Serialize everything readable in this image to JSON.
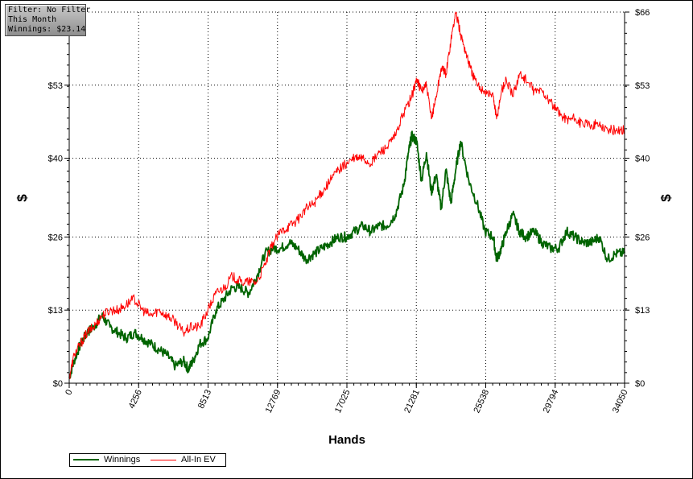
{
  "info_box": {
    "lines": [
      "Filter: No Filter",
      "This Month",
      "Winnings: $23.14"
    ]
  },
  "chart_data": {
    "type": "line",
    "xlabel": "Hands",
    "ylabel": "$",
    "xlim": [
      0,
      34050
    ],
    "ylim": [
      0,
      66
    ],
    "x_ticks": [
      0,
      4256,
      8513,
      12769,
      17025,
      21281,
      25538,
      29794,
      34050
    ],
    "y_ticks": [
      0,
      13,
      26,
      40,
      53,
      66
    ],
    "y_tick_labels": [
      "$0",
      "$13",
      "$26",
      "$40",
      "$53",
      "$66"
    ],
    "grid": true,
    "legend_position": "bottom-left",
    "series": [
      {
        "name": "Winnings",
        "color": "#006400",
        "x": [
          0,
          300,
          700,
          1100,
          1500,
          2000,
          2500,
          3000,
          3500,
          4000,
          4500,
          5000,
          5500,
          6000,
          6500,
          7000,
          7300,
          7600,
          8000,
          8500,
          9000,
          9500,
          10000,
          10500,
          11000,
          11500,
          12000,
          12500,
          13000,
          13500,
          14000,
          14500,
          15000,
          15500,
          16000,
          16500,
          17000,
          17500,
          18000,
          18500,
          19000,
          19500,
          20000,
          20500,
          20800,
          21000,
          21300,
          21600,
          21900,
          22200,
          22500,
          22800,
          23100,
          23400,
          23700,
          24000,
          24500,
          25000,
          25500,
          26000,
          26200,
          26500,
          26800,
          27200,
          27600,
          28000,
          28500,
          29000,
          29500,
          30000,
          30500,
          31000,
          31500,
          32000,
          32500,
          33000,
          33500,
          34050
        ],
        "values": [
          1,
          4,
          7,
          9,
          10,
          12,
          10,
          9,
          8,
          9,
          8,
          7,
          6,
          5,
          3,
          4,
          2.5,
          4,
          7,
          8,
          13,
          15,
          17,
          17,
          16,
          19,
          23,
          24,
          24,
          25,
          24,
          22,
          23,
          24,
          25,
          26,
          26,
          27,
          28,
          27,
          28,
          28,
          30,
          35,
          41,
          44,
          43,
          36,
          41,
          34,
          37,
          31,
          38,
          32,
          38,
          43,
          36,
          32,
          27,
          26,
          22,
          24,
          27,
          30,
          27,
          26,
          27,
          25,
          24,
          24,
          27,
          26,
          25,
          25,
          26,
          22,
          23,
          23.14
        ]
      },
      {
        "name": "All-In EV",
        "color": "#ff0000",
        "x": [
          0,
          300,
          700,
          1100,
          1500,
          2000,
          2500,
          3000,
          3500,
          4000,
          4500,
          5000,
          5500,
          6000,
          6500,
          7000,
          7500,
          8000,
          8500,
          9000,
          9500,
          10000,
          10500,
          11000,
          11500,
          12000,
          12500,
          13000,
          13500,
          14000,
          14500,
          15000,
          15500,
          16000,
          16500,
          17000,
          17500,
          18000,
          18500,
          19000,
          19500,
          20000,
          20500,
          21000,
          21300,
          21600,
          21900,
          22200,
          22500,
          22800,
          23100,
          23400,
          23700,
          24000,
          24300,
          24600,
          25000,
          25500,
          26000,
          26200,
          26500,
          26800,
          27200,
          27600,
          28000,
          28500,
          29000,
          29500,
          30000,
          30500,
          31000,
          31500,
          32000,
          32500,
          33000,
          33500,
          34050
        ],
        "values": [
          1,
          5,
          7,
          9,
          10,
          12,
          13,
          13,
          14,
          15,
          13,
          12,
          13,
          12,
          11,
          9,
          10,
          10,
          13,
          16,
          17,
          19,
          18,
          18,
          18,
          21,
          25,
          27,
          28,
          29,
          31,
          32,
          34,
          36,
          38,
          39,
          40,
          40,
          39,
          41,
          42,
          44,
          48,
          51,
          54,
          52,
          53,
          47,
          51,
          56,
          55,
          61,
          66,
          62,
          59,
          56,
          53,
          52,
          51,
          47,
          52,
          54,
          51,
          55,
          54,
          52,
          52,
          50,
          48,
          47,
          47,
          46,
          46,
          46,
          45,
          45,
          45
        ]
      }
    ]
  }
}
